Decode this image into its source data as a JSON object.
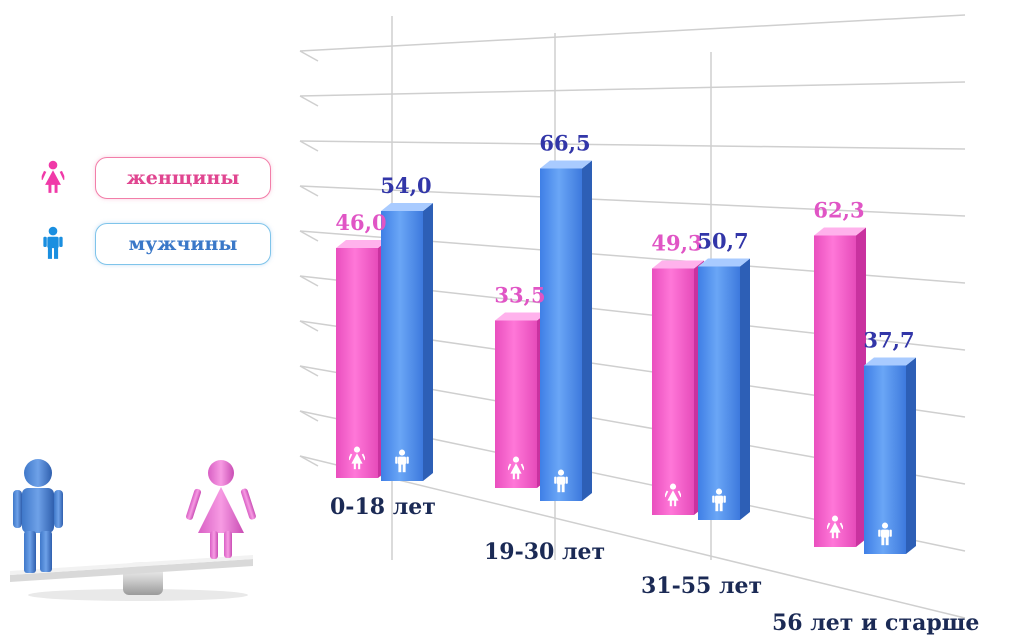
{
  "legend": {
    "women_label": "женщины",
    "men_label": "мужчины",
    "women_icon": "female-icon",
    "men_icon": "male-icon"
  },
  "colors": {
    "women": "#f562c8",
    "men": "#5590ee",
    "women_text": "#e055c5",
    "men_text": "#3236a8",
    "category_text": "#1b2a55"
  },
  "illustration": {
    "icon": "gender-balance-scale-icon"
  },
  "chart_data": {
    "type": "bar",
    "categories": [
      "0-18 лет",
      "19-30 лет",
      "31-55 лет",
      "56 лет и старше"
    ],
    "series": [
      {
        "name": "женщины",
        "values": [
          46.0,
          33.5,
          49.3,
          62.3
        ],
        "labels": [
          "46,0",
          "33,5",
          "49,3",
          "62,3"
        ]
      },
      {
        "name": "мужчины",
        "values": [
          54.0,
          66.5,
          50.7,
          37.7
        ],
        "labels": [
          "54,0",
          "66,5",
          "50,7",
          "37,7"
        ]
      }
    ],
    "ylim": [
      0,
      80
    ],
    "grid": true,
    "legend_position": "left",
    "three_d": true
  }
}
